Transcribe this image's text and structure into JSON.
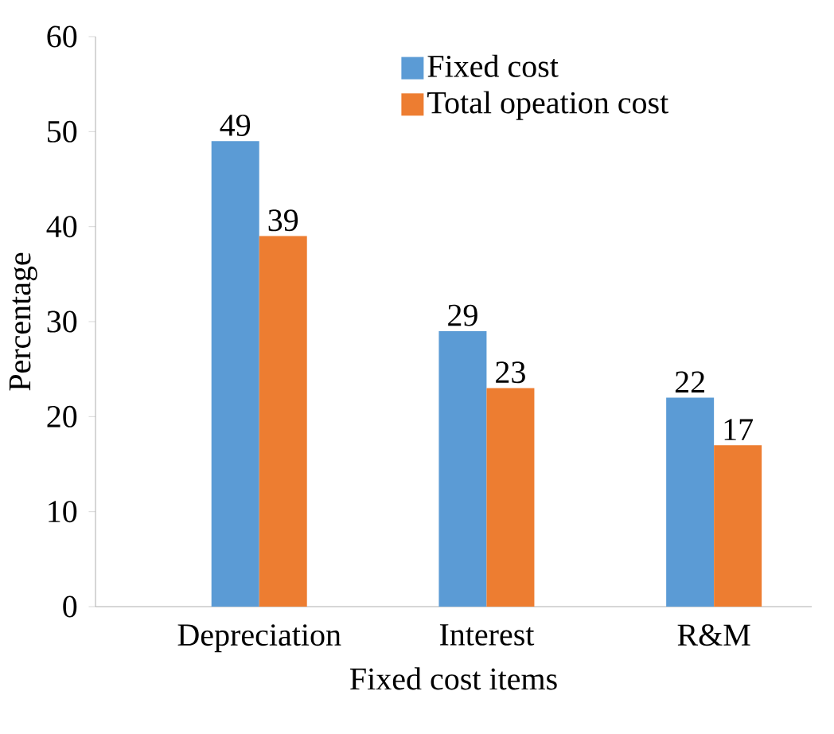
{
  "chart_data": {
    "type": "bar",
    "xlabel": "Fixed cost items",
    "ylabel": "Percentage",
    "categories": [
      "Depreciation",
      "Interest",
      "R&M"
    ],
    "series": [
      {
        "name": "Fixed cost",
        "color": "#5b9bd5",
        "values": [
          49,
          29,
          22
        ]
      },
      {
        "name": "Total opeation cost",
        "color": "#ed7d31",
        "values": [
          39,
          23,
          17
        ]
      }
    ],
    "ylim": [
      0,
      60
    ],
    "yticks": [
      0,
      10,
      20,
      30,
      40,
      50,
      60
    ],
    "data_labels": true,
    "legend": "top right",
    "grid": false
  }
}
